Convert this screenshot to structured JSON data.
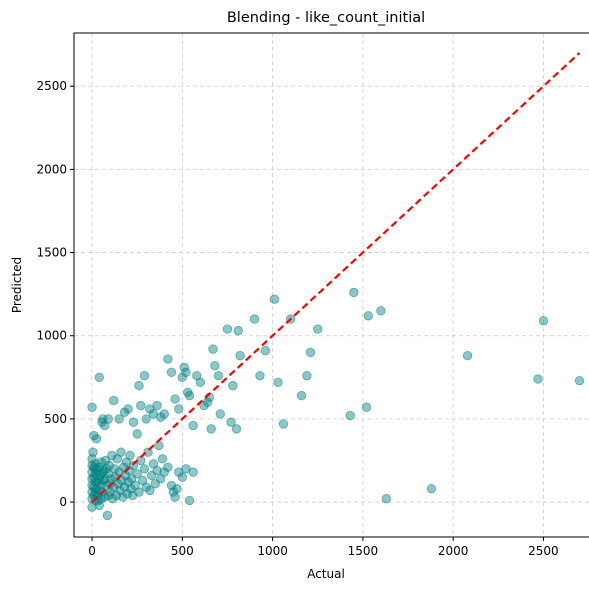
{
  "chart_data": {
    "type": "scatter",
    "title": "Blending - like_count_initial",
    "xlabel": "Actual",
    "ylabel": "Predicted",
    "xlim": [
      -100,
      2830
    ],
    "ylim": [
      -210,
      2820
    ],
    "xticks": [
      0,
      500,
      1000,
      1500,
      2000,
      2500
    ],
    "yticks": [
      0,
      500,
      1000,
      1500,
      2000,
      2500
    ],
    "grid": true,
    "point_color": "#008080",
    "reference_line": {
      "style": "dashed",
      "color": "#ff0000",
      "from": [
        0,
        0
      ],
      "to": [
        2700,
        2700
      ]
    },
    "series": [
      {
        "points": [
          [
            0,
            570
          ],
          [
            10,
            400
          ],
          [
            25,
            380
          ],
          [
            40,
            750
          ],
          [
            55,
            480
          ],
          [
            60,
            500
          ],
          [
            70,
            460
          ],
          [
            90,
            500
          ],
          [
            120,
            610
          ],
          [
            150,
            500
          ],
          [
            180,
            540
          ],
          [
            200,
            560
          ],
          [
            230,
            480
          ],
          [
            250,
            410
          ],
          [
            260,
            700
          ],
          [
            270,
            580
          ],
          [
            290,
            760
          ],
          [
            300,
            500
          ],
          [
            320,
            560
          ],
          [
            340,
            530
          ],
          [
            360,
            580
          ],
          [
            380,
            510
          ],
          [
            400,
            530
          ],
          [
            420,
            860
          ],
          [
            440,
            780
          ],
          [
            460,
            620
          ],
          [
            480,
            560
          ],
          [
            500,
            750
          ],
          [
            510,
            810
          ],
          [
            520,
            780
          ],
          [
            530,
            660
          ],
          [
            540,
            640
          ],
          [
            560,
            460
          ],
          [
            580,
            760
          ],
          [
            600,
            720
          ],
          [
            620,
            580
          ],
          [
            640,
            600
          ],
          [
            650,
            630
          ],
          [
            660,
            440
          ],
          [
            670,
            920
          ],
          [
            680,
            820
          ],
          [
            700,
            760
          ],
          [
            710,
            530
          ],
          [
            750,
            1040
          ],
          [
            770,
            480
          ],
          [
            780,
            700
          ],
          [
            800,
            440
          ],
          [
            810,
            1030
          ],
          [
            820,
            880
          ],
          [
            900,
            1100
          ],
          [
            930,
            760
          ],
          [
            960,
            910
          ],
          [
            1010,
            1220
          ],
          [
            1030,
            720
          ],
          [
            1060,
            470
          ],
          [
            1100,
            1100
          ],
          [
            1160,
            640
          ],
          [
            1190,
            760
          ],
          [
            1210,
            900
          ],
          [
            1250,
            1040
          ],
          [
            1430,
            520
          ],
          [
            1450,
            1260
          ],
          [
            1520,
            570
          ],
          [
            1530,
            1120
          ],
          [
            1600,
            1150
          ],
          [
            1630,
            20
          ],
          [
            1880,
            80
          ],
          [
            2080,
            880
          ],
          [
            2470,
            740
          ],
          [
            2500,
            1090
          ],
          [
            2700,
            730
          ],
          [
            5,
            300
          ],
          [
            15,
            200
          ],
          [
            20,
            120
          ],
          [
            25,
            80
          ],
          [
            30,
            40
          ],
          [
            35,
            10
          ],
          [
            40,
            -20
          ],
          [
            45,
            160
          ],
          [
            50,
            240
          ],
          [
            55,
            60
          ],
          [
            60,
            130
          ],
          [
            65,
            190
          ],
          [
            70,
            30
          ],
          [
            75,
            250
          ],
          [
            80,
            100
          ],
          [
            85,
            -80
          ],
          [
            90,
            170
          ],
          [
            95,
            220
          ],
          [
            100,
            60
          ],
          [
            105,
            140
          ],
          [
            110,
            280
          ],
          [
            115,
            20
          ],
          [
            120,
            90
          ],
          [
            125,
            200
          ],
          [
            130,
            150
          ],
          [
            135,
            40
          ],
          [
            140,
            260
          ],
          [
            145,
            110
          ],
          [
            150,
            180
          ],
          [
            155,
            70
          ],
          [
            160,
            300
          ],
          [
            165,
            130
          ],
          [
            170,
            30
          ],
          [
            175,
            210
          ],
          [
            180,
            90
          ],
          [
            185,
            160
          ],
          [
            190,
            240
          ],
          [
            195,
            50
          ],
          [
            200,
            120
          ],
          [
            205,
            190
          ],
          [
            210,
            280
          ],
          [
            215,
            80
          ],
          [
            220,
            140
          ],
          [
            225,
            40
          ],
          [
            230,
            220
          ],
          [
            240,
            100
          ],
          [
            250,
            170
          ],
          [
            260,
            60
          ],
          [
            270,
            250
          ],
          [
            280,
            130
          ],
          [
            290,
            200
          ],
          [
            300,
            90
          ],
          [
            310,
            300
          ],
          [
            320,
            70
          ],
          [
            330,
            160
          ],
          [
            340,
            230
          ],
          [
            350,
            110
          ],
          [
            360,
            190
          ],
          [
            370,
            340
          ],
          [
            380,
            140
          ],
          [
            390,
            260
          ],
          [
            400,
            180
          ],
          [
            420,
            210
          ],
          [
            440,
            100
          ],
          [
            450,
            60
          ],
          [
            460,
            30
          ],
          [
            470,
            80
          ],
          [
            480,
            180
          ],
          [
            500,
            150
          ],
          [
            520,
            200
          ],
          [
            540,
            10
          ],
          [
            560,
            180
          ],
          [
            0,
            20
          ],
          [
            0,
            60
          ],
          [
            0,
            100
          ],
          [
            0,
            140
          ],
          [
            0,
            180
          ],
          [
            0,
            220
          ],
          [
            0,
            -30
          ],
          [
            0,
            260
          ],
          [
            10,
            40
          ],
          [
            10,
            90
          ],
          [
            10,
            150
          ],
          [
            10,
            210
          ],
          [
            20,
            10
          ],
          [
            20,
            60
          ],
          [
            20,
            170
          ],
          [
            20,
            230
          ],
          [
            30,
            120
          ],
          [
            30,
            190
          ],
          [
            40,
            70
          ],
          [
            40,
            140
          ],
          [
            40,
            210
          ],
          [
            50,
            20
          ],
          [
            50,
            100
          ],
          [
            60,
            180
          ],
          [
            70,
            140
          ],
          [
            80,
            200
          ],
          [
            90,
            40
          ],
          [
            100,
            110
          ]
        ]
      }
    ]
  }
}
